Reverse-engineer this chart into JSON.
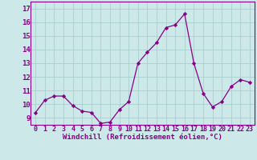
{
  "x": [
    0,
    1,
    2,
    3,
    4,
    5,
    6,
    7,
    8,
    9,
    10,
    11,
    12,
    13,
    14,
    15,
    16,
    17,
    18,
    19,
    20,
    21,
    22,
    23
  ],
  "y": [
    9.4,
    10.3,
    10.6,
    10.6,
    9.9,
    9.5,
    9.4,
    8.6,
    8.7,
    9.6,
    10.2,
    13.0,
    13.8,
    14.5,
    15.6,
    15.8,
    16.6,
    13.0,
    10.8,
    9.8,
    10.2,
    11.3,
    11.8,
    11.6
  ],
  "line_color": "#880088",
  "marker": "D",
  "marker_size": 2.2,
  "bg_color": "#cce8e8",
  "grid_color": "#aacfcf",
  "xlabel": "Windchill (Refroidissement éolien,°C)",
  "ylabel_ticks": [
    9,
    10,
    11,
    12,
    13,
    14,
    15,
    16,
    17
  ],
  "xtick_labels": [
    "0",
    "1",
    "2",
    "3",
    "4",
    "5",
    "6",
    "7",
    "8",
    "9",
    "10",
    "11",
    "12",
    "13",
    "14",
    "15",
    "16",
    "17",
    "18",
    "19",
    "20",
    "21",
    "22",
    "23"
  ],
  "ylim": [
    8.5,
    17.5
  ],
  "xlim": [
    -0.5,
    23.5
  ],
  "tick_color": "#880088",
  "label_color": "#880088",
  "font_size_xlabel": 6.5,
  "font_size_ytick": 6.5,
  "font_size_xtick": 6.0
}
